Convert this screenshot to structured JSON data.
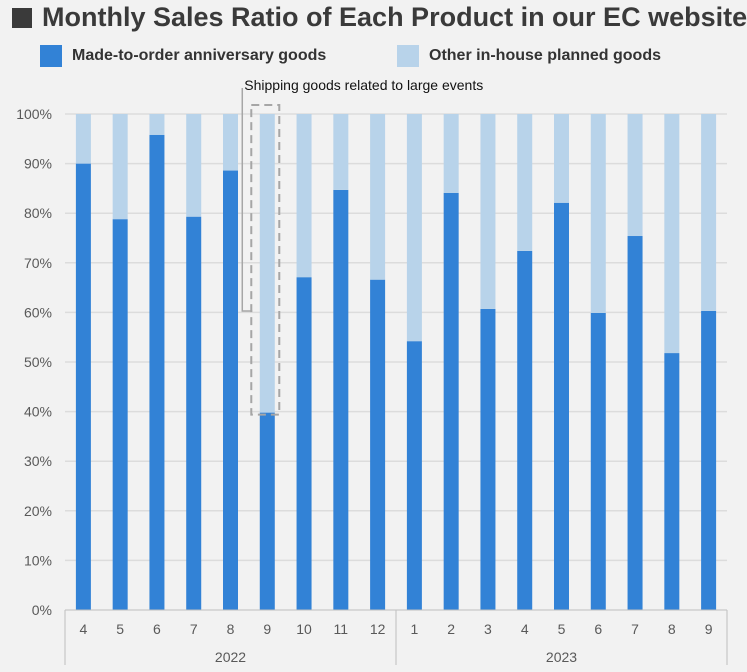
{
  "chart_data": {
    "type": "bar",
    "stacked": true,
    "title": "Monthly Sales Ratio of Each Product in our EC websites",
    "title_footnote_mark": "*",
    "categories": [
      "4",
      "5",
      "6",
      "7",
      "8",
      "9",
      "10",
      "11",
      "12",
      "1",
      "2",
      "3",
      "4",
      "5",
      "6",
      "7",
      "8",
      "9"
    ],
    "groups": [
      {
        "label": "2022",
        "count": 9
      },
      {
        "label": "2023",
        "count": 9
      }
    ],
    "series": [
      {
        "name": "Made-to-order anniversary goods",
        "color": "#3282d6",
        "values": [
          90.0,
          78.8,
          95.8,
          79.3,
          88.6,
          39.8,
          67.1,
          84.7,
          66.6,
          54.2,
          84.1,
          60.7,
          72.4,
          82.1,
          59.9,
          75.4,
          51.8,
          60.3
        ]
      },
      {
        "name": "Other in-house planned goods",
        "color": "#b8d3ea",
        "values": [
          10.0,
          21.2,
          4.2,
          20.7,
          11.4,
          60.2,
          32.9,
          15.3,
          33.4,
          45.8,
          15.9,
          39.3,
          27.6,
          17.9,
          40.1,
          24.6,
          48.2,
          39.7
        ]
      }
    ],
    "y_ticks": [
      "0%",
      "10%",
      "20%",
      "30%",
      "40%",
      "50%",
      "60%",
      "70%",
      "80%",
      "90%",
      "100%"
    ],
    "ylim": [
      0,
      100
    ],
    "grid": true,
    "legend_position": "top",
    "annotation": {
      "text": "Shipping goods related to large events",
      "target_index": 5
    }
  }
}
